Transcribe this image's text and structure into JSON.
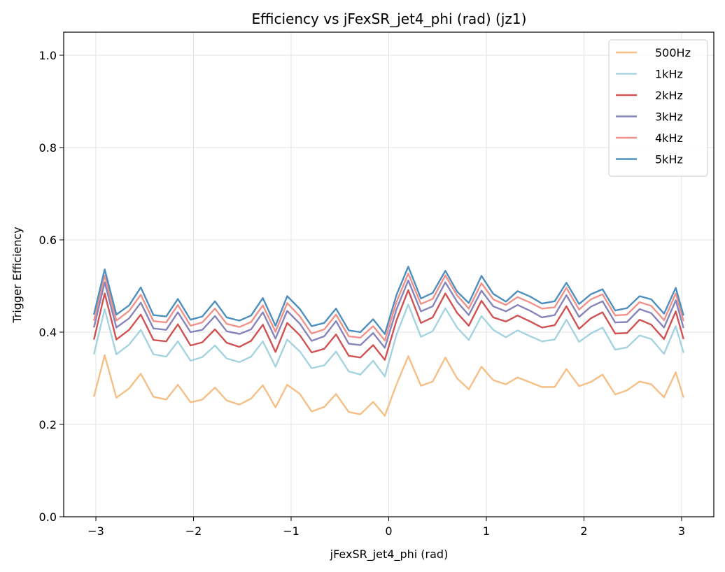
{
  "chart_data": {
    "type": "line",
    "title": "Efficiency vs jFexSR_jet4_phi (rad) (jz1)",
    "xlabel": "jFexSR_jet4_phi (rad)",
    "ylabel": "Trigger Efficiency",
    "xlim": [
      -3.33,
      3.33
    ],
    "ylim": [
      0.0,
      1.05
    ],
    "xticks": [
      -3,
      -2,
      -1,
      0,
      1,
      2,
      3
    ],
    "xtick_labels": [
      "−3",
      "−2",
      "−1",
      "0",
      "1",
      "2",
      "3"
    ],
    "yticks": [
      0.0,
      0.2,
      0.4,
      0.6,
      0.8,
      1.0
    ],
    "ytick_labels": [
      "0.0",
      "0.2",
      "0.4",
      "0.6",
      "0.8",
      "1.0"
    ],
    "grid": true,
    "legend_position": "top-right",
    "x": [
      -3.02,
      -2.91,
      -2.79,
      -2.66,
      -2.54,
      -2.41,
      -2.28,
      -2.16,
      -2.03,
      -1.91,
      -1.78,
      -1.66,
      -1.53,
      -1.41,
      -1.29,
      -1.16,
      -1.04,
      -0.91,
      -0.79,
      -0.66,
      -0.54,
      -0.41,
      -0.29,
      -0.16,
      -0.04,
      0.08,
      0.2,
      0.33,
      0.45,
      0.58,
      0.7,
      0.82,
      0.95,
      1.07,
      1.2,
      1.32,
      1.45,
      1.57,
      1.7,
      1.82,
      1.95,
      2.07,
      2.19,
      2.32,
      2.44,
      2.57,
      2.69,
      2.82,
      2.94,
      3.02
    ],
    "series": [
      {
        "name": "500Hz",
        "color": "#f5bf86",
        "values": [
          0.26,
          0.35,
          0.258,
          0.278,
          0.31,
          0.26,
          0.254,
          0.286,
          0.248,
          0.254,
          0.28,
          0.252,
          0.243,
          0.256,
          0.285,
          0.237,
          0.286,
          0.266,
          0.228,
          0.238,
          0.266,
          0.227,
          0.222,
          0.249,
          0.219,
          0.287,
          0.348,
          0.284,
          0.293,
          0.345,
          0.3,
          0.276,
          0.325,
          0.296,
          0.287,
          0.302,
          0.291,
          0.281,
          0.281,
          0.32,
          0.283,
          0.292,
          0.308,
          0.265,
          0.274,
          0.293,
          0.287,
          0.259,
          0.313,
          0.258
        ]
      },
      {
        "name": "1kHz",
        "color": "#a5d3df",
        "values": [
          0.352,
          0.45,
          0.352,
          0.373,
          0.405,
          0.352,
          0.347,
          0.38,
          0.338,
          0.346,
          0.371,
          0.343,
          0.335,
          0.347,
          0.38,
          0.325,
          0.384,
          0.358,
          0.322,
          0.328,
          0.358,
          0.315,
          0.308,
          0.338,
          0.304,
          0.395,
          0.46,
          0.39,
          0.402,
          0.452,
          0.41,
          0.383,
          0.435,
          0.405,
          0.389,
          0.404,
          0.391,
          0.38,
          0.384,
          0.427,
          0.379,
          0.397,
          0.41,
          0.362,
          0.367,
          0.393,
          0.385,
          0.353,
          0.413,
          0.355
        ]
      },
      {
        "name": "2kHz",
        "color": "#d05252",
        "values": [
          0.384,
          0.484,
          0.384,
          0.405,
          0.438,
          0.383,
          0.38,
          0.417,
          0.371,
          0.378,
          0.406,
          0.377,
          0.368,
          0.381,
          0.416,
          0.357,
          0.42,
          0.393,
          0.356,
          0.364,
          0.395,
          0.349,
          0.345,
          0.372,
          0.34,
          0.426,
          0.491,
          0.42,
          0.432,
          0.484,
          0.442,
          0.414,
          0.468,
          0.432,
          0.423,
          0.436,
          0.423,
          0.41,
          0.415,
          0.456,
          0.407,
          0.43,
          0.443,
          0.397,
          0.398,
          0.427,
          0.416,
          0.385,
          0.445,
          0.385
        ]
      },
      {
        "name": "3kHz",
        "color": "#8584bb",
        "values": [
          0.41,
          0.508,
          0.41,
          0.43,
          0.464,
          0.408,
          0.405,
          0.443,
          0.4,
          0.405,
          0.435,
          0.402,
          0.396,
          0.406,
          0.443,
          0.386,
          0.446,
          0.418,
          0.381,
          0.391,
          0.424,
          0.375,
          0.372,
          0.398,
          0.366,
          0.45,
          0.512,
          0.445,
          0.456,
          0.508,
          0.466,
          0.437,
          0.49,
          0.456,
          0.445,
          0.459,
          0.446,
          0.432,
          0.437,
          0.48,
          0.433,
          0.455,
          0.467,
          0.421,
          0.422,
          0.45,
          0.441,
          0.41,
          0.469,
          0.409
        ]
      },
      {
        "name": "4kHz",
        "color": "#f0928a",
        "values": [
          0.425,
          0.523,
          0.425,
          0.446,
          0.481,
          0.424,
          0.421,
          0.459,
          0.414,
          0.421,
          0.451,
          0.418,
          0.411,
          0.422,
          0.458,
          0.401,
          0.463,
          0.434,
          0.397,
          0.406,
          0.438,
          0.391,
          0.388,
          0.413,
          0.382,
          0.466,
          0.527,
          0.461,
          0.472,
          0.523,
          0.48,
          0.451,
          0.506,
          0.471,
          0.459,
          0.476,
          0.464,
          0.451,
          0.454,
          0.496,
          0.449,
          0.471,
          0.482,
          0.436,
          0.438,
          0.465,
          0.457,
          0.426,
          0.484,
          0.424
        ]
      },
      {
        "name": "5kHz",
        "color": "#4d8fbe",
        "values": [
          0.438,
          0.536,
          0.438,
          0.458,
          0.497,
          0.437,
          0.434,
          0.472,
          0.427,
          0.434,
          0.467,
          0.432,
          0.425,
          0.436,
          0.474,
          0.414,
          0.478,
          0.45,
          0.413,
          0.42,
          0.451,
          0.404,
          0.4,
          0.428,
          0.396,
          0.481,
          0.542,
          0.473,
          0.485,
          0.533,
          0.488,
          0.463,
          0.522,
          0.483,
          0.466,
          0.489,
          0.477,
          0.462,
          0.467,
          0.507,
          0.461,
          0.482,
          0.493,
          0.447,
          0.452,
          0.478,
          0.471,
          0.44,
          0.496,
          0.436
        ]
      }
    ]
  }
}
